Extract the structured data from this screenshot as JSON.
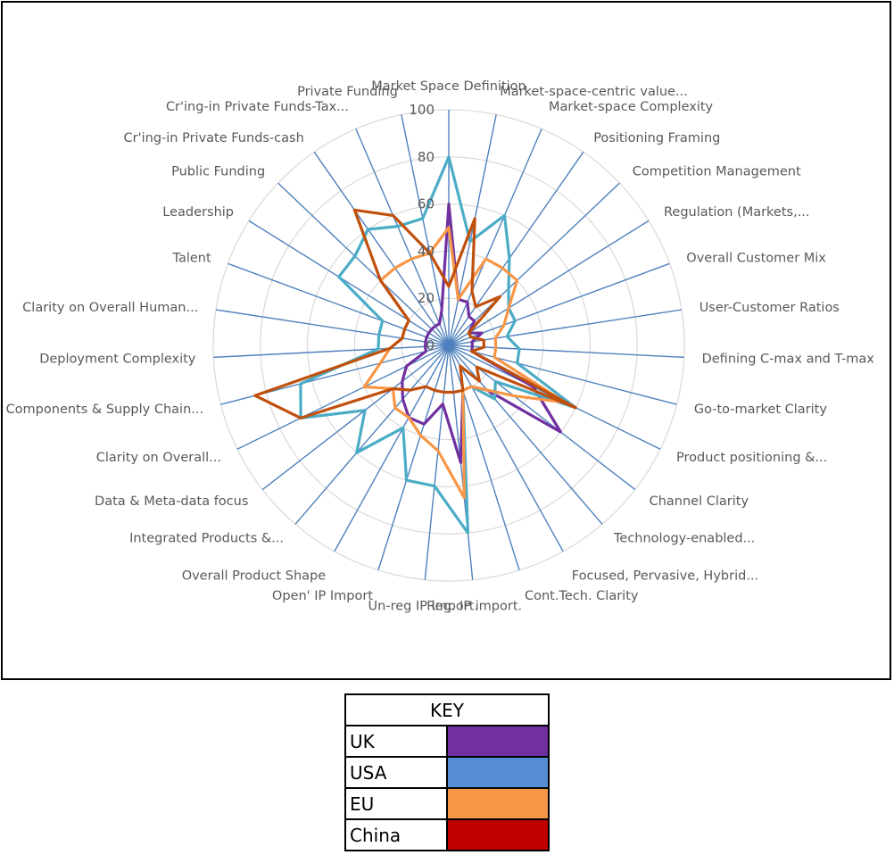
{
  "chart_data": {
    "type": "radar",
    "categories": [
      "Market Space Definition",
      "Market-space-centric value...",
      "Market-space Complexity",
      "Positioning Framing",
      "Competition Management",
      "Regulation (Markets,...",
      "Overall Customer Mix",
      "User-Customer Ratios",
      "Defining C-max and T-max",
      "Go-to-market Clarity",
      "Product positioning &...",
      "Channel Clarity",
      "Technology-enabled...",
      "Focused, Pervasive, Hybrid...",
      "Cont.Tech. Clarity",
      "Reg. IP import.",
      "Un-reg IP import.",
      "Open' IP Import",
      "Overall Product Shape",
      "Integrated Products &...",
      "Data & Meta-data focus",
      "Clarity on Overall...",
      "Components & Supply Chain...",
      "Deployment Complexity",
      "Clarity on Overall Human...",
      "Talent",
      "Leadership",
      "Public Funding",
      "Cr'ing-in Private Funds-cash",
      "Cr'ing-in Private Funds-Tax...",
      "Private Funding"
    ],
    "ticks": [
      "0",
      "20",
      "40",
      "60",
      "80",
      "100"
    ],
    "rlim": [
      0,
      100
    ],
    "series": [
      {
        "name": "UK",
        "color": "#7030A0",
        "values": [
          60,
          20,
          20,
          15,
          15,
          10,
          15,
          10,
          10,
          10,
          40,
          60,
          25,
          20,
          20,
          50,
          25,
          35,
          35,
          30,
          25,
          20,
          10,
          10,
          10,
          10,
          10,
          10,
          10,
          10,
          15
        ]
      },
      {
        "name": "USA",
        "color": "#4BACC6",
        "values": [
          80,
          45,
          60,
          45,
          35,
          30,
          30,
          25,
          30,
          30,
          60,
          25,
          30,
          20,
          20,
          80,
          60,
          60,
          40,
          60,
          45,
          70,
          65,
          30,
          30,
          30,
          55,
          55,
          60,
          55,
          55
        ]
      },
      {
        "name": "EU",
        "color": "#F79646",
        "values": [
          50,
          20,
          40,
          40,
          40,
          30,
          25,
          20,
          20,
          20,
          55,
          35,
          25,
          20,
          20,
          65,
          45,
          40,
          35,
          35,
          30,
          40,
          30,
          25,
          20,
          20,
          20,
          40,
          40,
          40,
          40
        ]
      },
      {
        "name": "China",
        "color": "#C0500C",
        "values": [
          25,
          55,
          25,
          20,
          30,
          10,
          10,
          15,
          15,
          10,
          60,
          15,
          20,
          10,
          20,
          20,
          20,
          20,
          20,
          25,
          30,
          70,
          85,
          25,
          20,
          20,
          20,
          40,
          70,
          60,
          40
        ]
      }
    ],
    "grid": true,
    "legend_position": "below"
  },
  "legend": {
    "title": "KEY",
    "items": [
      {
        "label": "UK",
        "color": "#7030A0"
      },
      {
        "label": "USA",
        "color": "#558ED5"
      },
      {
        "label": "EU",
        "color": "#F79646"
      },
      {
        "label": "China",
        "color": "#C00000"
      }
    ]
  }
}
